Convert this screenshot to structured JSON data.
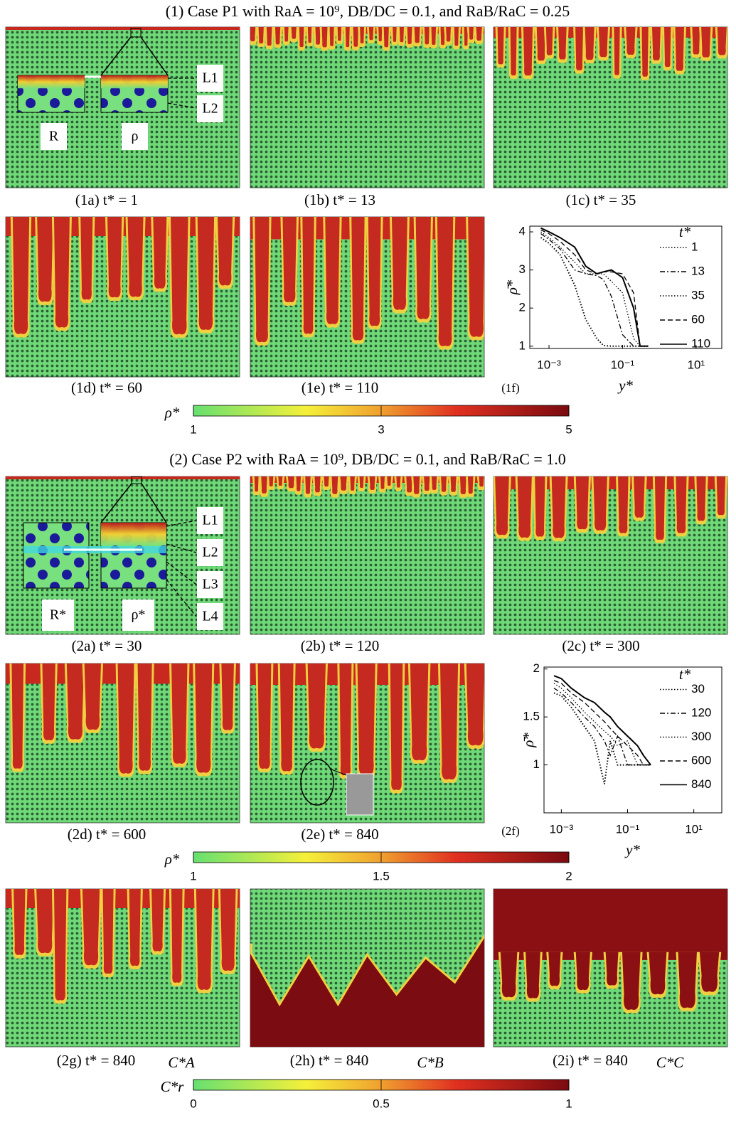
{
  "section1": {
    "title": "(1) Case P1 with RaA = 10⁹, DB/DC = 0.1, and RaB/RaC = 0.25",
    "captions": [
      "(1a) t* = 1",
      "(1b) t* = 13",
      "(1c) t* = 35",
      "(1d) t* = 60",
      "(1e) t* = 110",
      "(1f)"
    ],
    "inset_labels": [
      "L1",
      "L2",
      "R",
      "ρ"
    ]
  },
  "colorbar1": {
    "label": "ρ*",
    "lim": [
      1,
      5
    ],
    "ticks": [
      1,
      3,
      5
    ]
  },
  "section2": {
    "title": "(2) Case P2 with RaA = 10⁹, DB/DC = 0.1, and RaB/RaC = 1.0",
    "captions": [
      "(2a) t* = 30",
      "(2b) t* = 120",
      "(2c) t* = 300",
      "(2d) t* = 600",
      "(2e) t* = 840",
      "(2f)",
      "(2g) t* = 840",
      "(2h) t* = 840",
      "(2i) t* = 840"
    ],
    "panel_tags": [
      "C*A",
      "C*B",
      "C*C"
    ],
    "inset_labels": [
      "L1",
      "L2",
      "L3",
      "L4",
      "R*",
      "ρ*"
    ]
  },
  "colorbar2": {
    "label": "ρ*",
    "lim": [
      1,
      2
    ],
    "ticks": [
      1,
      1.5,
      2
    ]
  },
  "colorbar3": {
    "label": "C*r",
    "lim": [
      0,
      1
    ],
    "ticks": [
      0,
      0.5,
      1
    ]
  },
  "chart_data": [
    {
      "type": "line",
      "xlabel": "y*",
      "ylabel": "ρ̄*",
      "legend_title": "t*",
      "log_x": true,
      "x": [
        0.0006,
        0.001,
        0.002,
        0.005,
        0.01,
        0.02,
        0.03,
        0.05,
        0.1,
        0.2,
        0.3,
        0.5
      ],
      "xlim": [
        0.0003,
        50
      ],
      "xticks": [
        {
          "value": 0.001,
          "label": "10⁻³"
        },
        {
          "value": 0.1,
          "label": "10⁻¹"
        },
        {
          "value": 10,
          "label": "10¹"
        }
      ],
      "ylim": [
        0.94,
        4.15
      ],
      "yticks": [
        1,
        2,
        3,
        4
      ],
      "series": [
        {
          "name": "1",
          "color": "#000000",
          "dash": "dotted",
          "values": [
            3.85,
            3.7,
            3.4,
            2.6,
            1.7,
            1.2,
            1.02,
            1.0,
            1.0,
            1.0,
            1.0,
            1.0
          ]
        },
        {
          "name": "13",
          "color": "#000000",
          "dash": "dashdot",
          "values": [
            3.95,
            3.8,
            3.55,
            3.0,
            2.9,
            2.85,
            2.75,
            2.3,
            1.3,
            1.0,
            1.0,
            1.0
          ]
        },
        {
          "name": "35",
          "color": "#000000",
          "dash": "dotted",
          "values": [
            4.0,
            3.85,
            3.6,
            3.2,
            2.9,
            2.9,
            2.9,
            2.7,
            2.4,
            1.2,
            1.0,
            1.0
          ]
        },
        {
          "name": "60",
          "color": "#000000",
          "dash": "dashed",
          "values": [
            4.05,
            3.95,
            3.75,
            3.4,
            3.0,
            2.9,
            2.95,
            2.95,
            2.9,
            2.4,
            1.0,
            1.0
          ]
        },
        {
          "name": "110",
          "color": "#000000",
          "dash": "solid",
          "values": [
            4.1,
            4.0,
            3.85,
            3.6,
            3.1,
            2.9,
            2.95,
            3.0,
            2.8,
            2.0,
            1.0,
            1.0
          ]
        }
      ]
    },
    {
      "type": "line",
      "xlabel": "y*",
      "ylabel": "ρ̄*",
      "legend_title": "t*",
      "log_x": true,
      "x": [
        0.0006,
        0.001,
        0.002,
        0.005,
        0.01,
        0.02,
        0.03,
        0.05,
        0.1,
        0.2,
        0.3,
        0.5
      ],
      "xlim": [
        0.0003,
        70
      ],
      "xticks": [
        {
          "value": 0.001,
          "label": "10⁻³"
        },
        {
          "value": 0.1,
          "label": "10⁻¹"
        },
        {
          "value": 10,
          "label": "10¹"
        }
      ],
      "ylim": [
        0.5,
        2.02
      ],
      "yticks": [
        1,
        1.5,
        2
      ],
      "series": [
        {
          "name": "30",
          "color": "#000000",
          "dash": "dotted",
          "values": [
            1.75,
            1.72,
            1.6,
            1.4,
            1.25,
            0.8,
            1.25,
            1.0,
            1.0,
            1.0,
            1.0,
            1.0
          ]
        },
        {
          "name": "120",
          "color": "#000000",
          "dash": "dashdot",
          "values": [
            1.8,
            1.75,
            1.65,
            1.5,
            1.4,
            1.25,
            1.1,
            1.3,
            1.0,
            1.0,
            1.0,
            1.0
          ]
        },
        {
          "name": "300",
          "color": "#000000",
          "dash": "dotted",
          "values": [
            1.85,
            1.8,
            1.7,
            1.55,
            1.45,
            1.35,
            1.3,
            1.2,
            1.25,
            1.0,
            1.0,
            1.0
          ]
        },
        {
          "name": "600",
          "color": "#000000",
          "dash": "dashed",
          "values": [
            1.88,
            1.85,
            1.75,
            1.65,
            1.55,
            1.45,
            1.38,
            1.3,
            1.2,
            1.1,
            1.0,
            1.0
          ]
        },
        {
          "name": "840",
          "color": "#000000",
          "dash": "solid",
          "values": [
            1.93,
            1.9,
            1.8,
            1.7,
            1.65,
            1.55,
            1.5,
            1.4,
            1.3,
            1.2,
            1.1,
            1.0
          ]
        }
      ]
    }
  ]
}
